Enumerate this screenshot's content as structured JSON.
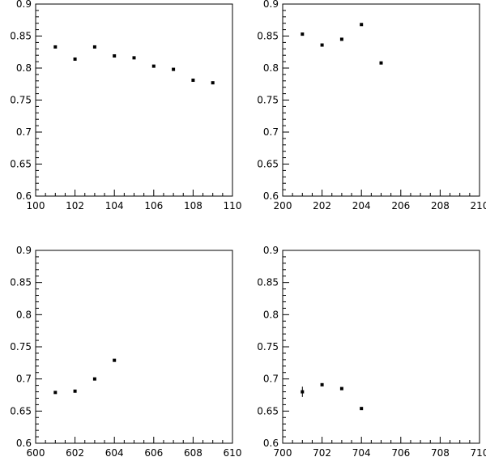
{
  "chart_data": [
    {
      "type": "scatter",
      "xlim": [
        100,
        110
      ],
      "ylim": [
        0.6,
        0.9
      ],
      "xticks": [
        100,
        102,
        104,
        106,
        108,
        110
      ],
      "xtick_labels": [
        "100",
        "102",
        "104",
        "106",
        "108",
        "110"
      ],
      "yticks": [
        0.6,
        0.65,
        0.7,
        0.75,
        0.8,
        0.85,
        0.9
      ],
      "ytick_labels": [
        "0.6",
        "0.65",
        "0.7",
        "0.75",
        "0.8",
        "0.85",
        "0.9"
      ],
      "x": [
        101,
        102,
        103,
        104,
        105,
        106,
        107,
        108,
        109
      ],
      "y": [
        0.833,
        0.814,
        0.833,
        0.819,
        0.816,
        0.803,
        0.798,
        0.781,
        0.777
      ],
      "grid": false
    },
    {
      "type": "scatter",
      "xlim": [
        200,
        210
      ],
      "ylim": [
        0.6,
        0.9
      ],
      "xticks": [
        200,
        202,
        204,
        206,
        208,
        210
      ],
      "xtick_labels": [
        "200",
        "202",
        "204",
        "206",
        "208",
        "210"
      ],
      "yticks": [
        0.6,
        0.65,
        0.7,
        0.75,
        0.8,
        0.85,
        0.9
      ],
      "ytick_labels": [
        "0.6",
        "0.65",
        "0.7",
        "0.75",
        "0.8",
        "0.85",
        "0.9"
      ],
      "x": [
        201,
        202,
        203,
        204,
        205
      ],
      "y": [
        0.853,
        0.836,
        0.845,
        0.868,
        0.808
      ],
      "grid": false
    },
    {
      "type": "scatter",
      "xlim": [
        600,
        610
      ],
      "ylim": [
        0.6,
        0.9
      ],
      "xticks": [
        600,
        602,
        604,
        606,
        608,
        610
      ],
      "xtick_labels": [
        "600",
        "602",
        "604",
        "606",
        "608",
        "610"
      ],
      "yticks": [
        0.6,
        0.65,
        0.7,
        0.75,
        0.8,
        0.85,
        0.9
      ],
      "ytick_labels": [
        "0.6",
        "0.65",
        "0.7",
        "0.75",
        "0.8",
        "0.85",
        "0.9"
      ],
      "x": [
        601,
        602,
        603,
        604
      ],
      "y": [
        0.679,
        0.681,
        0.7,
        0.729
      ],
      "grid": false
    },
    {
      "type": "scatter",
      "xlim": [
        700,
        710
      ],
      "ylim": [
        0.6,
        0.9
      ],
      "xticks": [
        700,
        702,
        704,
        706,
        708,
        710
      ],
      "xtick_labels": [
        "700",
        "702",
        "704",
        "706",
        "708",
        "710"
      ],
      "yticks": [
        0.6,
        0.65,
        0.7,
        0.75,
        0.8,
        0.85,
        0.9
      ],
      "ytick_labels": [
        "0.6",
        "0.65",
        "0.7",
        "0.75",
        "0.8",
        "0.85",
        "0.9"
      ],
      "x": [
        701,
        702,
        703,
        704
      ],
      "y": [
        0.68,
        0.691,
        0.685,
        0.654
      ],
      "yerr": [
        0.008,
        0.002,
        0.002,
        0.002
      ],
      "grid": false
    }
  ]
}
